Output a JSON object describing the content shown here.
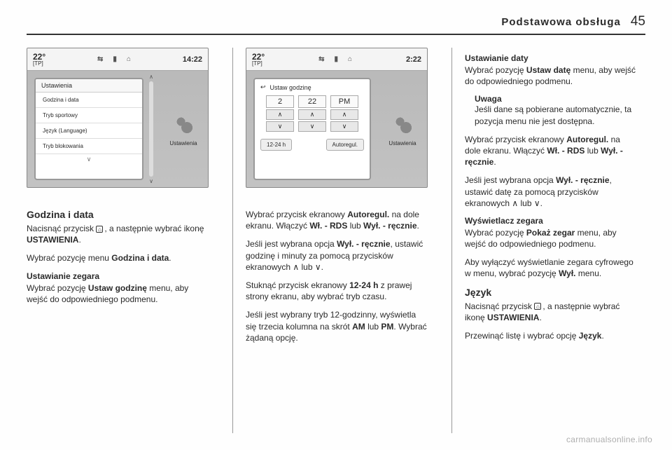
{
  "header": {
    "title": "Podstawowa obsługa",
    "page": "45"
  },
  "watermark": "carmanualsonline.info",
  "screenshot1": {
    "temp": "22°",
    "tp": "[TP]",
    "clock": "14:22",
    "side_label": "Ustawienia",
    "menu_title": "Ustawienia",
    "items": [
      "Godzina i data",
      "Tryb sportowy",
      "Język (Language)",
      "Tryb blokowania"
    ]
  },
  "screenshot2": {
    "temp": "22°",
    "tp": "[TP]",
    "clock": "2:22",
    "side_label": "Ustawienia",
    "box_title": "Ustaw godzinę",
    "vals": [
      "2",
      "22",
      "PM"
    ],
    "btn_up": "∧",
    "btn_dn": "∨",
    "btn_1224": "12-24 h",
    "btn_auto": "Autoregul."
  },
  "col1": {
    "h": "Godzina i data",
    "p1a": "Nacisnąć przycisk ",
    "p1b": ", a następnie wybrać ikonę ",
    "p1c": "USTAWIENIA",
    "p1d": ".",
    "p2a": "Wybrać pozycję menu ",
    "p2b": "Godzina i data",
    "p2c": ".",
    "s1": "Ustawianie zegara",
    "p3a": "Wybrać pozycję ",
    "p3b": "Ustaw godzinę",
    "p3c": " menu, aby wejść do odpowiedniego podmenu."
  },
  "col2": {
    "p1a": "Wybrać przycisk ekranowy ",
    "p1b": "Autoregul.",
    "p1c": " na dole ekranu. Włączyć ",
    "p1d": "Wł. - RDS",
    "p1e": " lub ",
    "p1f": "Wył. - ręcznie",
    "p1g": ".",
    "p2a": "Jeśli jest wybrana opcja ",
    "p2b": "Wył. - ręcznie",
    "p2c": ", ustawić godzinę i minuty za pomocą przycisków ekranowych ∧ lub ∨.",
    "p3a": "Stuknąć przycisk ekranowy ",
    "p3b": "12-24 h",
    "p3c": " z prawej strony ekranu, aby wybrać tryb czasu.",
    "p4a": "Jeśli jest wybrany tryb 12-godzinny, wyświetla się trzecia kolumna na skrót ",
    "p4b": "AM",
    "p4c": " lub ",
    "p4d": "PM",
    "p4e": ". Wybrać żądaną opcję."
  },
  "col3": {
    "s1": "Ustawianie daty",
    "p1a": "Wybrać pozycję ",
    "p1b": "Ustaw datę",
    "p1c": " menu, aby wejść do odpowiedniego podmenu.",
    "note_t": "Uwaga",
    "note_b": "Jeśli dane są pobierane automatycznie, ta pozycja menu nie jest dostępna.",
    "p2a": "Wybrać przycisk ekranowy ",
    "p2b": "Autoregul.",
    "p2c": " na dole ekranu. Włączyć ",
    "p2d": "Wł. - RDS",
    "p2e": " lub ",
    "p2f": "Wył. - ręcznie",
    "p2g": ".",
    "p3a": "Jeśli jest wybrana opcja ",
    "p3b": "Wył. - ręcznie",
    "p3c": ", ustawić datę za pomocą przycisków ekranowych ∧ lub ∨.",
    "s2": "Wyświetlacz zegara",
    "p4a": "Wybrać pozycję ",
    "p4b": "Pokaż zegar",
    "p4c": " menu, aby wejść do odpowiedniego podmenu.",
    "p5a": "Aby wyłączyć wyświetlanie zegara cyfrowego w menu, wybrać pozycję ",
    "p5b": "Wył.",
    "p5c": " menu.",
    "h2": "Język",
    "p6a": "Nacisnąć przycisk ",
    "p6b": ", a następnie wybrać ikonę ",
    "p6c": "USTAWIENIA",
    "p6d": ".",
    "p7a": "Przewinąć listę i wybrać opcję ",
    "p7b": "Język",
    "p7c": "."
  }
}
